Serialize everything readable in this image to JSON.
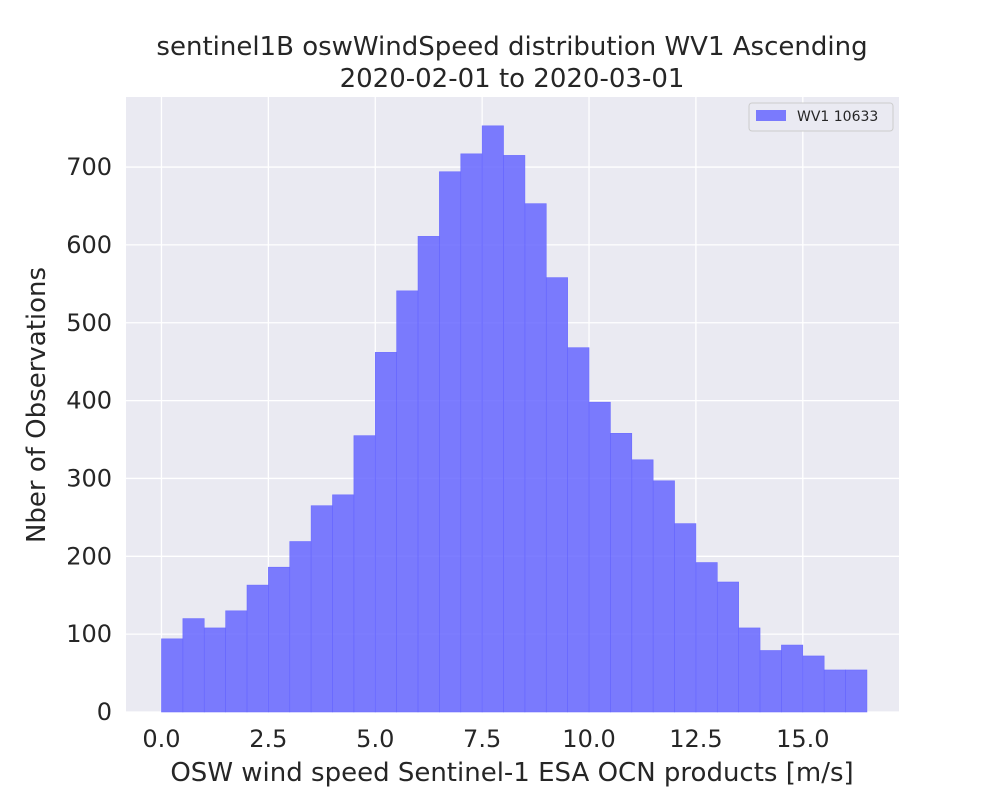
{
  "chart_data": {
    "type": "bar",
    "title_lines": [
      "sentinel1B oswWindSpeed distribution WV1 Ascending",
      "2020-02-01 to 2020-03-01"
    ],
    "xlabel": "OSW wind speed Sentinel-1 ESA OCN products [m/s]",
    "ylabel": "Nber of Observations",
    "xlim": [
      -0.83,
      17.25
    ],
    "ylim": [
      0,
      790
    ],
    "xticks": [
      0.0,
      2.5,
      5.0,
      7.5,
      10.0,
      12.5,
      15.0
    ],
    "xtick_labels": [
      "0.0",
      "2.5",
      "5.0",
      "7.5",
      "10.0",
      "12.5",
      "15.0"
    ],
    "yticks": [
      0,
      100,
      200,
      300,
      400,
      500,
      600,
      700
    ],
    "ytick_labels": [
      "0",
      "100",
      "200",
      "300",
      "400",
      "500",
      "600",
      "700"
    ],
    "bin_width": 0.5,
    "bin_starts": [
      0.0,
      0.5,
      1.0,
      1.5,
      2.0,
      2.5,
      3.0,
      3.5,
      4.0,
      4.5,
      5.0,
      5.5,
      6.0,
      6.5,
      7.0,
      7.5,
      8.0,
      8.5,
      9.0,
      9.5,
      10.0,
      10.5,
      11.0,
      11.5,
      12.0,
      12.5,
      13.0,
      13.5,
      14.0,
      14.5,
      15.0,
      15.5,
      16.0
    ],
    "series": [
      {
        "name": "WV1 10633",
        "color": "#6666ff",
        "values": [
          94,
          120,
          108,
          130,
          163,
          186,
          219,
          265,
          279,
          355,
          462,
          541,
          611,
          694,
          717,
          753,
          715,
          653,
          558,
          468,
          398,
          358,
          324,
          297,
          242,
          192,
          167,
          108,
          79,
          86,
          72,
          54,
          54
        ]
      }
    ],
    "grid": true,
    "legend_position": "top-right",
    "background_color": "#eaeaf2",
    "grid_color": "#ffffff"
  }
}
